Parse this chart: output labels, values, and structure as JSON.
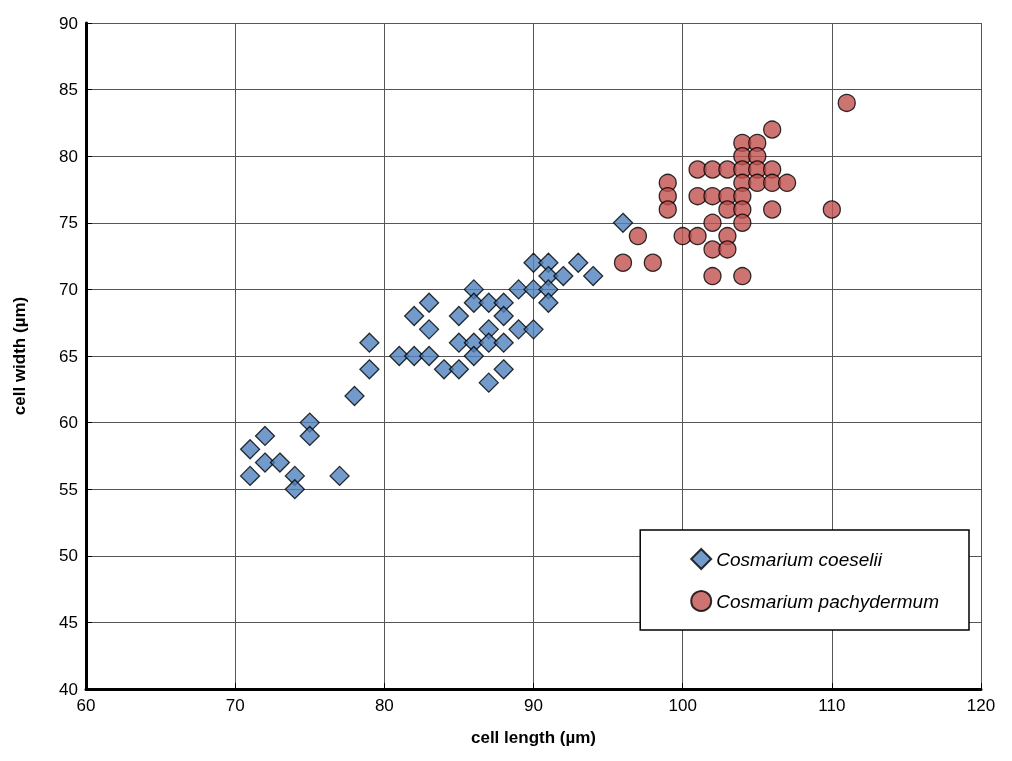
{
  "chart_data": {
    "type": "scatter",
    "xlabel": "cell length (µm)",
    "ylabel": "cell width (µm)",
    "xlim": [
      60,
      120
    ],
    "xticks": [
      60,
      70,
      80,
      90,
      100,
      110,
      120
    ],
    "ylim": [
      40,
      90
    ],
    "yticks": [
      40,
      45,
      50,
      55,
      60,
      65,
      70,
      75,
      80,
      85,
      90
    ],
    "grid": true,
    "legend": "bottom right",
    "series": [
      {
        "name": "Cosmarium coeselii",
        "color": "#4f81bd",
        "marker": "diamond",
        "x": [
          71,
          71,
          72,
          72,
          73,
          74,
          74,
          75,
          75,
          77,
          78,
          79,
          79,
          81,
          82,
          82,
          83,
          83,
          83,
          84,
          85,
          85,
          85,
          86,
          86,
          86,
          86,
          87,
          87,
          87,
          87,
          88,
          88,
          88,
          88,
          89,
          89,
          90,
          90,
          90,
          91,
          91,
          91,
          91,
          92,
          93,
          94,
          96
        ],
        "values": [
          58,
          56,
          59,
          57,
          57,
          56,
          55,
          60,
          59,
          56,
          62,
          66,
          64,
          65,
          68,
          65,
          69,
          67,
          65,
          64,
          68,
          66,
          64,
          70,
          69,
          66,
          65,
          69,
          67,
          66,
          63,
          69,
          68,
          66,
          64,
          70,
          67,
          72,
          70,
          67,
          72,
          71,
          70,
          69,
          71,
          72,
          71,
          75
        ]
      },
      {
        "name": "Cosmarium pachydermum",
        "color": "#c0504d",
        "marker": "circle",
        "x": [
          111,
          106,
          104,
          105,
          104,
          105,
          101,
          102,
          103,
          104,
          105,
          106,
          99,
          104,
          105,
          106,
          107,
          99,
          101,
          102,
          103,
          104,
          99,
          103,
          104,
          106,
          110,
          102,
          104,
          97,
          100,
          101,
          103,
          102,
          103,
          96,
          98,
          102,
          104
        ],
        "values": [
          84,
          82,
          81,
          81,
          80,
          80,
          79,
          79,
          79,
          79,
          79,
          79,
          78,
          78,
          78,
          78,
          78,
          77,
          77,
          77,
          77,
          77,
          76,
          76,
          76,
          76,
          76,
          75,
          75,
          74,
          74,
          74,
          74,
          73,
          73,
          72,
          72,
          71,
          71
        ]
      }
    ]
  }
}
